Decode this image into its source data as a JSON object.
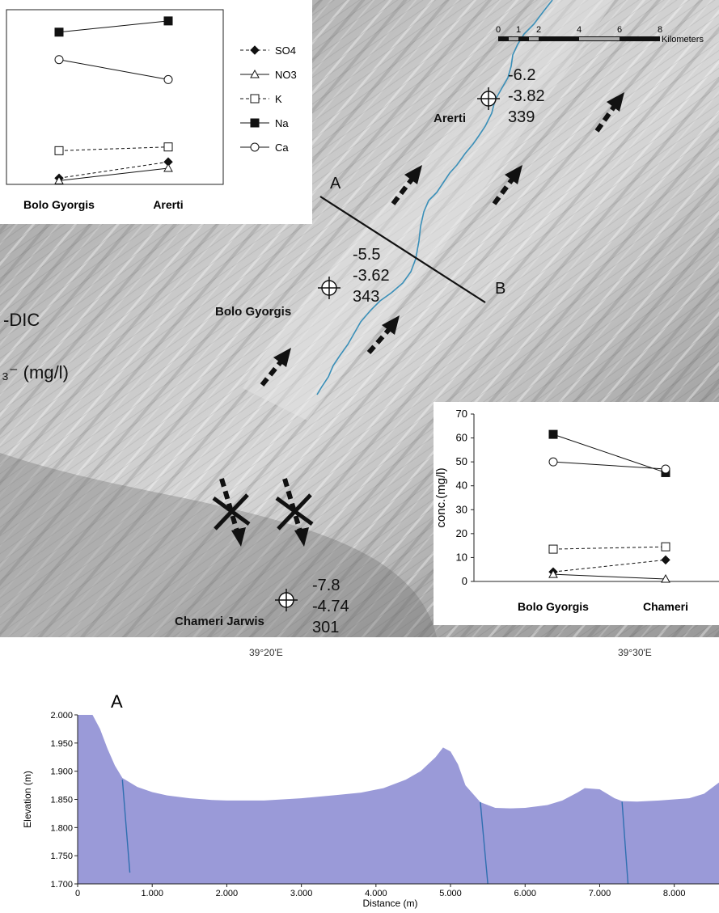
{
  "map": {
    "scale_bar": {
      "ticks": [
        "0",
        "1",
        "2",
        "4",
        "6",
        "8"
      ],
      "unit": "Kilometers"
    },
    "cross_section_labels": {
      "start": "A",
      "end": "B"
    },
    "left_legend_fragments": [
      "-DIC",
      "₃⁻ (mg/l)"
    ],
    "sites": [
      {
        "name": "Arerti",
        "values": [
          "-6.2",
          "-3.82",
          "339"
        ]
      },
      {
        "name": "Bolo Gyorgis",
        "values": [
          "-5.5",
          "-3.62",
          "343"
        ]
      },
      {
        "name": "Chameri Jarwis",
        "values": [
          "-7.8",
          "-4.74",
          "301"
        ]
      }
    ],
    "longitude_labels": [
      "39°20'E",
      "39°30'E"
    ],
    "colors": {
      "river": "#3a8fb8",
      "arrow": "#111111",
      "section_line": "#111111"
    }
  },
  "chart_data": [
    {
      "type": "line",
      "categories": [
        "Bolo Gyorgis",
        "Arerti"
      ],
      "series": [
        {
          "name": "SO4",
          "values": [
            2.5,
            9
          ],
          "marker": "diamond-filled",
          "dash": "dashed"
        },
        {
          "name": "NO3",
          "values": [
            1.5,
            6.5
          ],
          "marker": "triangle-open",
          "dash": "solid"
        },
        {
          "name": "K",
          "values": [
            13.5,
            15
          ],
          "marker": "square-open",
          "dash": "dashed"
        },
        {
          "name": "Na",
          "values": [
            61,
            65.5
          ],
          "marker": "square-filled",
          "dash": "solid"
        },
        {
          "name": "Ca",
          "values": [
            50,
            42
          ],
          "marker": "circle-open",
          "dash": "solid"
        }
      ],
      "ylim": [
        0,
        70
      ],
      "legend": "right",
      "ylabel": ""
    },
    {
      "type": "line",
      "categories": [
        "Bolo Gyorgis",
        "Chameri"
      ],
      "series": [
        {
          "values": [
            4,
            9
          ],
          "marker": "diamond-filled",
          "dash": "dashed"
        },
        {
          "values": [
            3,
            1
          ],
          "marker": "triangle-open",
          "dash": "solid"
        },
        {
          "values": [
            13.5,
            14.5
          ],
          "marker": "square-open",
          "dash": "dashed"
        },
        {
          "values": [
            61.5,
            45.5
          ],
          "marker": "square-filled",
          "dash": "solid"
        },
        {
          "values": [
            50,
            47
          ],
          "marker": "circle-open",
          "dash": "solid"
        }
      ],
      "ylim": [
        0,
        70
      ],
      "yticks": [
        0,
        10,
        20,
        30,
        40,
        50,
        60,
        70
      ],
      "ylabel": "conc.(mg/l)",
      "legend": "none"
    },
    {
      "type": "area",
      "title": "A",
      "xlabel": "Distance (m)",
      "ylabel": "Elevation (m)",
      "xlim": [
        0,
        8600
      ],
      "ylim": [
        1.7,
        2.0
      ],
      "xticks": [
        "0",
        "1.000",
        "2.000",
        "3.000",
        "4.000",
        "5.000",
        "6.000",
        "7.000",
        "8.000"
      ],
      "yticks": [
        "1.700",
        "1.750",
        "1.800",
        "1.850",
        "1.900",
        "1.950",
        "2.000"
      ],
      "fill_color": "#9a9ad8",
      "x": [
        0,
        200,
        300,
        400,
        500,
        600,
        800,
        1000,
        1200,
        1500,
        1800,
        2000,
        2500,
        3000,
        3500,
        3800,
        4100,
        4400,
        4600,
        4800,
        4900,
        5000,
        5100,
        5200,
        5400,
        5600,
        5800,
        6000,
        6300,
        6500,
        6700,
        6800,
        7000,
        7200,
        7300,
        7500,
        7800,
        8000,
        8200,
        8400,
        8600
      ],
      "y": [
        2.0,
        2.0,
        1.975,
        1.94,
        1.91,
        1.888,
        1.872,
        1.863,
        1.857,
        1.852,
        1.849,
        1.848,
        1.848,
        1.852,
        1.858,
        1.862,
        1.87,
        1.885,
        1.9,
        1.925,
        1.942,
        1.935,
        1.912,
        1.875,
        1.845,
        1.835,
        1.834,
        1.835,
        1.84,
        1.848,
        1.862,
        1.87,
        1.868,
        1.852,
        1.847,
        1.846,
        1.848,
        1.85,
        1.852,
        1.86,
        1.88
      ],
      "streams": [
        [
          600,
          1.885,
          700,
          1.72
        ],
        [
          5400,
          1.845,
          5500,
          1.7
        ],
        [
          7300,
          1.846,
          7380,
          1.7
        ]
      ]
    }
  ]
}
